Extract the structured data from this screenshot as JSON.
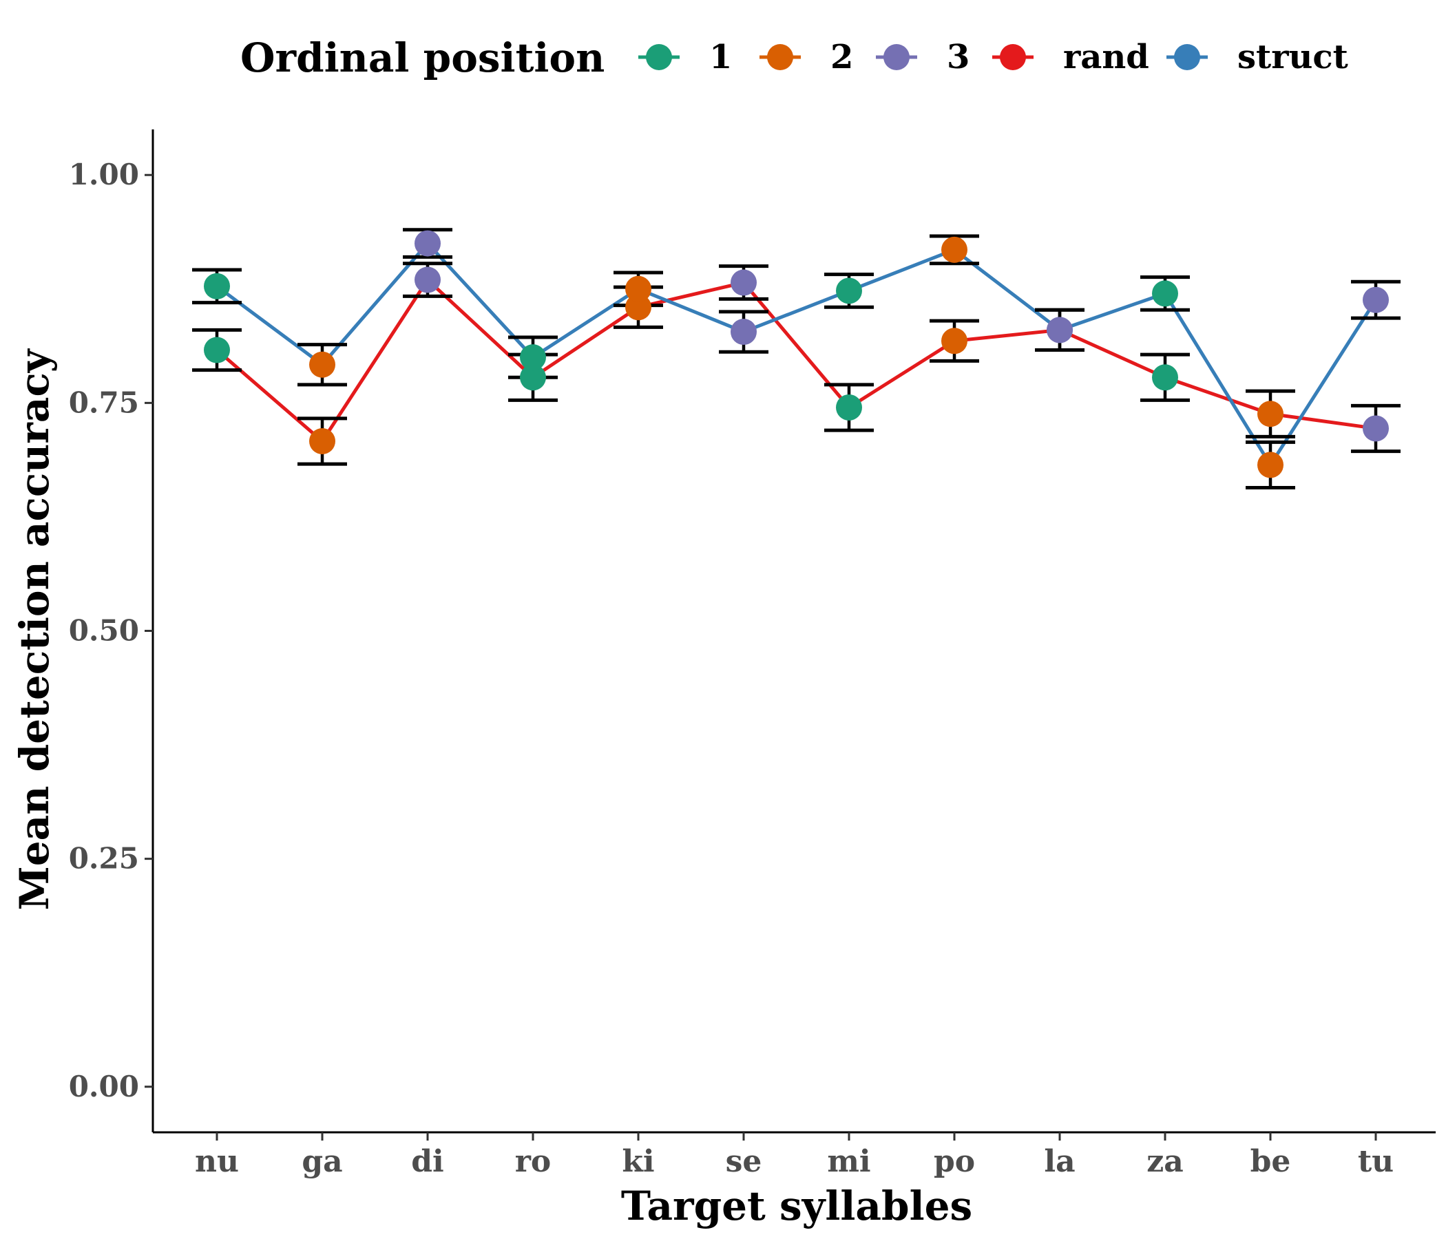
{
  "chart_data": {
    "type": "line",
    "xlabel": "Target syllables",
    "ylabel": "Mean detection accuracy",
    "ylim": [
      -0.05,
      1.05
    ],
    "yticks": [
      "0.00",
      "0.25",
      "0.50",
      "0.75",
      "1.00"
    ],
    "grid": false,
    "legend_position": "top",
    "categories": [
      "nu",
      "ga",
      "di",
      "ro",
      "ki",
      "se",
      "mi",
      "po",
      "la",
      "za",
      "be",
      "tu"
    ],
    "legend": {
      "title": "Ordinal position",
      "entries": [
        {
          "label": "1",
          "color": "#1b9e77"
        },
        {
          "label": "2",
          "color": "#d95f02"
        },
        {
          "label": "3",
          "color": "#7570b3"
        },
        {
          "label": "rand",
          "color": "#e41a1c"
        },
        {
          "label": "struct",
          "color": "#377eb8"
        }
      ]
    },
    "series": [
      {
        "name": "rand",
        "color": "#e41a1c",
        "values": [
          0.808,
          0.708,
          0.885,
          0.778,
          0.855,
          0.882,
          0.745,
          0.818,
          0.83,
          0.778,
          0.738,
          0.722
        ],
        "error": [
          0.022,
          0.025,
          0.018,
          0.025,
          0.022,
          0.018,
          0.025,
          0.022,
          0.022,
          0.025,
          0.025,
          0.025
        ],
        "ordinal_position": [
          "1",
          "2",
          "3",
          "1",
          "2",
          "3",
          "1",
          "2",
          "3",
          "1",
          "2",
          "3"
        ]
      },
      {
        "name": "struct",
        "color": "#377eb8",
        "values": [
          0.878,
          0.792,
          0.925,
          0.8,
          0.875,
          0.828,
          0.873,
          0.918,
          0.83,
          0.87,
          0.682,
          0.863
        ],
        "error": [
          0.018,
          0.022,
          0.015,
          0.022,
          0.018,
          0.022,
          0.018,
          0.015,
          0.022,
          0.018,
          0.025,
          0.02
        ],
        "ordinal_position": [
          "1",
          "2",
          "3",
          "1",
          "2",
          "3",
          "1",
          "2",
          "3",
          "1",
          "2",
          "3"
        ]
      }
    ]
  }
}
